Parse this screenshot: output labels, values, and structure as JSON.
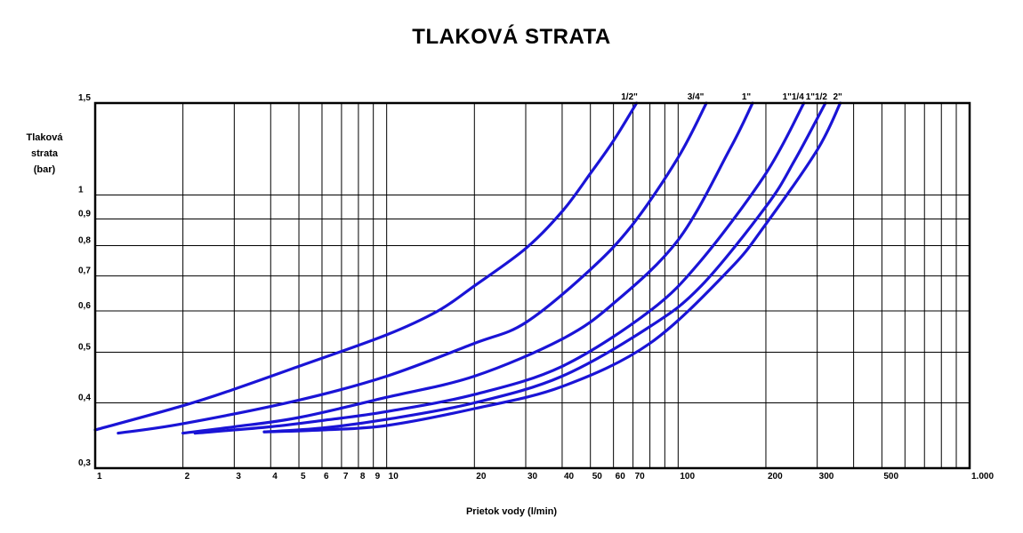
{
  "chart_data": {
    "type": "line",
    "title": "TLAKOVÁ STRATA",
    "ylabel": [
      "Tlaková",
      "strata",
      "(bar)"
    ],
    "xlabel": "Prietok vody (l/min)",
    "x_scale": "log",
    "y_scale": "log",
    "xlim": [
      1,
      1000
    ],
    "ylim": [
      0.3,
      1.5
    ],
    "grid": true,
    "x_ticks": [
      {
        "value": 1,
        "label": "1"
      },
      {
        "value": 2,
        "label": "2"
      },
      {
        "value": 3,
        "label": "3"
      },
      {
        "value": 4,
        "label": "4"
      },
      {
        "value": 5,
        "label": "5"
      },
      {
        "value": 6,
        "label": "6"
      },
      {
        "value": 7,
        "label": "7"
      },
      {
        "value": 8,
        "label": "8"
      },
      {
        "value": 9,
        "label": "9"
      },
      {
        "value": 10,
        "label": "10"
      },
      {
        "value": 20,
        "label": "20"
      },
      {
        "value": 30,
        "label": "30"
      },
      {
        "value": 40,
        "label": "40"
      },
      {
        "value": 50,
        "label": "50"
      },
      {
        "value": 60,
        "label": "60"
      },
      {
        "value": 70,
        "label": "70"
      },
      {
        "value": 80,
        "label": ""
      },
      {
        "value": 90,
        "label": ""
      },
      {
        "value": 100,
        "label": "100"
      },
      {
        "value": 200,
        "label": "200"
      },
      {
        "value": 300,
        "label": "300"
      },
      {
        "value": 400,
        "label": ""
      },
      {
        "value": 500,
        "label": "500"
      },
      {
        "value": 600,
        "label": ""
      },
      {
        "value": 700,
        "label": ""
      },
      {
        "value": 800,
        "label": ""
      },
      {
        "value": 900,
        "label": ""
      },
      {
        "value": 1000,
        "label": "1.000"
      }
    ],
    "y_ticks": [
      {
        "value": 0.3,
        "label": "0,3"
      },
      {
        "value": 0.4,
        "label": "0,4"
      },
      {
        "value": 0.5,
        "label": "0,5"
      },
      {
        "value": 0.6,
        "label": "0,6"
      },
      {
        "value": 0.7,
        "label": "0,7"
      },
      {
        "value": 0.8,
        "label": "0,8"
      },
      {
        "value": 0.9,
        "label": "0,9"
      },
      {
        "value": 1,
        "label": "1"
      },
      {
        "value": 1.5,
        "label": "1,5"
      }
    ],
    "series": [
      {
        "name": "1/2\"",
        "x": [
          1,
          2,
          3,
          5,
          10,
          15,
          20,
          30,
          40,
          50,
          60,
          72
        ],
        "y": [
          0.355,
          0.395,
          0.425,
          0.47,
          0.54,
          0.6,
          0.67,
          0.79,
          0.93,
          1.1,
          1.27,
          1.5
        ]
      },
      {
        "name": "3/4\"",
        "x": [
          1.2,
          2,
          5,
          10,
          20,
          30,
          50,
          70,
          100,
          125
        ],
        "y": [
          0.35,
          0.365,
          0.405,
          0.45,
          0.52,
          0.57,
          0.72,
          0.88,
          1.18,
          1.5
        ]
      },
      {
        "name": "1\"",
        "x": [
          2,
          3,
          5,
          10,
          20,
          40,
          60,
          100,
          150,
          180
        ],
        "y": [
          0.35,
          0.36,
          0.375,
          0.41,
          0.45,
          0.53,
          0.62,
          0.82,
          1.22,
          1.5
        ]
      },
      {
        "name": "1\"1/4",
        "x": [
          2.2,
          4,
          6,
          10,
          20,
          40,
          80,
          120,
          200,
          270
        ],
        "y": [
          0.35,
          0.36,
          0.37,
          0.385,
          0.415,
          0.47,
          0.6,
          0.75,
          1.1,
          1.5
        ]
      },
      {
        "name": "1\"1/2",
        "x": [
          3.8,
          6,
          10,
          20,
          40,
          80,
          120,
          200,
          250,
          320
        ],
        "y": [
          0.352,
          0.358,
          0.372,
          0.4,
          0.45,
          0.56,
          0.67,
          0.95,
          1.16,
          1.5
        ]
      },
      {
        "name": "2\"",
        "x": [
          3.8,
          6,
          10,
          20,
          40,
          80,
          150,
          200,
          300,
          360
        ],
        "y": [
          0.352,
          0.355,
          0.362,
          0.39,
          0.43,
          0.52,
          0.72,
          0.88,
          1.22,
          1.5
        ]
      }
    ],
    "series_color": "#1a14d6"
  }
}
